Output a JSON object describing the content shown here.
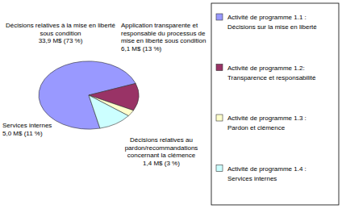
{
  "chart_data": {
    "type": "pie",
    "categories": [
      "Activité de programme 1.1 : Décisions sur la mise en liberté",
      "Activité de programme 1.2: Transparence et responsabilité",
      "Activité de programme 1.3 : Pardon et clémence",
      "Activité de programme 1.4 : Services internes"
    ],
    "values": [
      73,
      13,
      3,
      11
    ],
    "value_labels": [
      "33,9 M$ (73 %)",
      "6,1 M$ (13 %)",
      "1,4 M$ (3 %)",
      "5,0 M$ (11 %)"
    ],
    "annotations": [
      "Décisions relatives à la mise en liberté sous condition",
      "Application transparente et responsable du processus de mise en liberté sous condition",
      "Décisions relatives au pardon/recommandations concernant la clémence",
      "Services internes"
    ],
    "colors": [
      "#9999ff",
      "#993366",
      "#ffffcc",
      "#ccffff"
    ],
    "legend": "right",
    "data_labels": true
  }
}
